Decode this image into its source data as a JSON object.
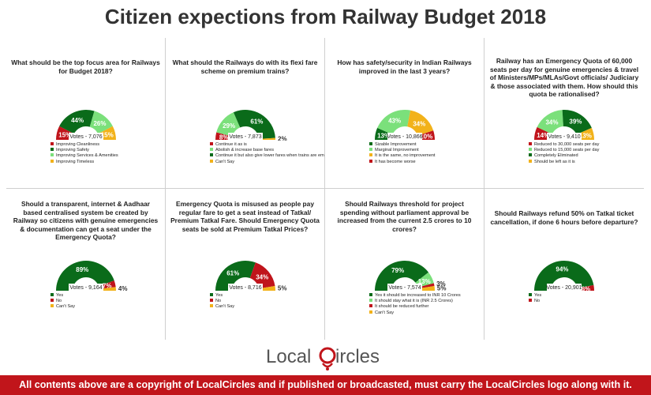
{
  "title": "Citizen expections from Railway Budget 2018",
  "colors": {
    "dark_green": "#0a6b1a",
    "light_green": "#7be07b",
    "red": "#c0141b",
    "amber": "#f2b21a"
  },
  "logo": {
    "text_a": "Local",
    "text_b": "ircles"
  },
  "footer": "All contents above are a copyright of LocalCircles and if published or broadcasted, must carry the LocalCircles logo along with it.",
  "chart_data": [
    {
      "type": "pie",
      "question": "What should be the top focus area for Railways for Budget 2018?",
      "votes": "Votes - 7,076",
      "slices": [
        {
          "label": "Improving Cleanliness",
          "value": 15,
          "display": "15%",
          "color": "#c0141b"
        },
        {
          "label": "Improving Safety",
          "value": 44,
          "display": "44%",
          "color": "#0a6b1a"
        },
        {
          "label": "Improving Services & Amenities",
          "value": 26,
          "display": "26%",
          "color": "#7be07b"
        },
        {
          "label": "Improving Timeless",
          "value": 15,
          "display": "15%",
          "color": "#f2b21a"
        }
      ]
    },
    {
      "type": "pie",
      "question": "What should the Railways do with its flexi fare scheme on premium trains?",
      "votes": "Votes - 7,873",
      "slices": [
        {
          "label": "Continue it as is",
          "value": 8,
          "display": "8%",
          "color": "#c0141b"
        },
        {
          "label": "Abolish & increase base fares",
          "value": 29,
          "display": "29%",
          "color": "#7be07b"
        },
        {
          "label": "Continue it but also give lower fares when trains are empty",
          "value": 61,
          "display": "61%",
          "color": "#0a6b1a"
        },
        {
          "label": "Can't Say",
          "value": 2,
          "display": "2%",
          "color": "#f2b21a"
        }
      ]
    },
    {
      "type": "pie",
      "question": "How has safety/security in Indian Railways improved in the last 3 years?",
      "votes": "Votes - 10,866",
      "slices": [
        {
          "label": "Sizable Improvement",
          "value": 13,
          "display": "13%",
          "color": "#0a6b1a"
        },
        {
          "label": "Marginal Improvement",
          "value": 43,
          "display": "43%",
          "color": "#7be07b"
        },
        {
          "label": "It is the same, no improvement",
          "value": 34,
          "display": "34%",
          "color": "#f2b21a"
        },
        {
          "label": "It has become worse",
          "value": 10,
          "display": "10%",
          "color": "#c0141b"
        }
      ]
    },
    {
      "type": "pie",
      "question": "Railway has an Emergency Quota of 60,000 seats per day for genuine emergencies & travel of Ministers/MPs/MLAs/Govt officials/ Judiciary & those associated with them. How should this quota be rationalised?",
      "votes": "Votes - 9,410",
      "slices": [
        {
          "label": "Reduced to 30,000 seats per day",
          "value": 14,
          "display": "14%",
          "color": "#c0141b"
        },
        {
          "label": "Reduced to 15,000 seats per day",
          "value": 34,
          "display": "34%",
          "color": "#7be07b"
        },
        {
          "label": "Completely Eliminated",
          "value": 39,
          "display": "39%",
          "color": "#0a6b1a"
        },
        {
          "label": "Should be left as it is",
          "value": 13,
          "display": "13%",
          "color": "#f2b21a"
        }
      ]
    },
    {
      "type": "pie",
      "question": "Should a transparent, internet & Aadhaar based centralised system be created by Railway so citizens with genuine emergencies & documentation can get a seat under the Emergency Quota?",
      "votes": "Votes - 9,164",
      "slices": [
        {
          "label": "Yes",
          "value": 89,
          "display": "89%",
          "color": "#0a6b1a"
        },
        {
          "label": "No",
          "value": 7,
          "display": "7%",
          "color": "#c0141b"
        },
        {
          "label": "Can't Say",
          "value": 4,
          "display": "4%",
          "color": "#f2b21a"
        }
      ]
    },
    {
      "type": "pie",
      "question": "Emergency Quota is misused as people pay regular fare to get a seat instead of Tatkal/ Premium Tatkal Fare. Should Emergency Quota seats be sold at Premium Tatkal Prices?",
      "votes": "Votes - 8,716",
      "slices": [
        {
          "label": "Yes",
          "value": 61,
          "display": "61%",
          "color": "#0a6b1a"
        },
        {
          "label": "No",
          "value": 34,
          "display": "34%",
          "color": "#c0141b"
        },
        {
          "label": "Can't Say",
          "value": 5,
          "display": "5%",
          "color": "#f2b21a"
        }
      ]
    },
    {
      "type": "pie",
      "question": "Should Railways threshold for project spending without parliament approval be increased from the current 2.5 crores to 10 crores?",
      "votes": "Votes - 7,574",
      "slices": [
        {
          "label": "Yes it should be increased to INR 10 Crores",
          "value": 79,
          "display": "79%",
          "color": "#0a6b1a"
        },
        {
          "label": "It should stay what it is (INR 2.5 Crores)",
          "value": 13,
          "display": "13%",
          "color": "#7be07b"
        },
        {
          "label": "It should be reduced further",
          "value": 3,
          "display": "3%",
          "color": "#c0141b"
        },
        {
          "label": "Can't Say",
          "value": 5,
          "display": "5%",
          "color": "#f2b21a"
        }
      ]
    },
    {
      "type": "pie",
      "question": "Should Railways refund 50% on Tatkal ticket cancellation, if done 6 hours before departure?",
      "votes": "Votes - 20,901",
      "slices": [
        {
          "label": "Yes",
          "value": 94,
          "display": "94%",
          "color": "#0a6b1a"
        },
        {
          "label": "No",
          "value": 6,
          "display": "6%",
          "color": "#c0141b"
        }
      ]
    }
  ]
}
